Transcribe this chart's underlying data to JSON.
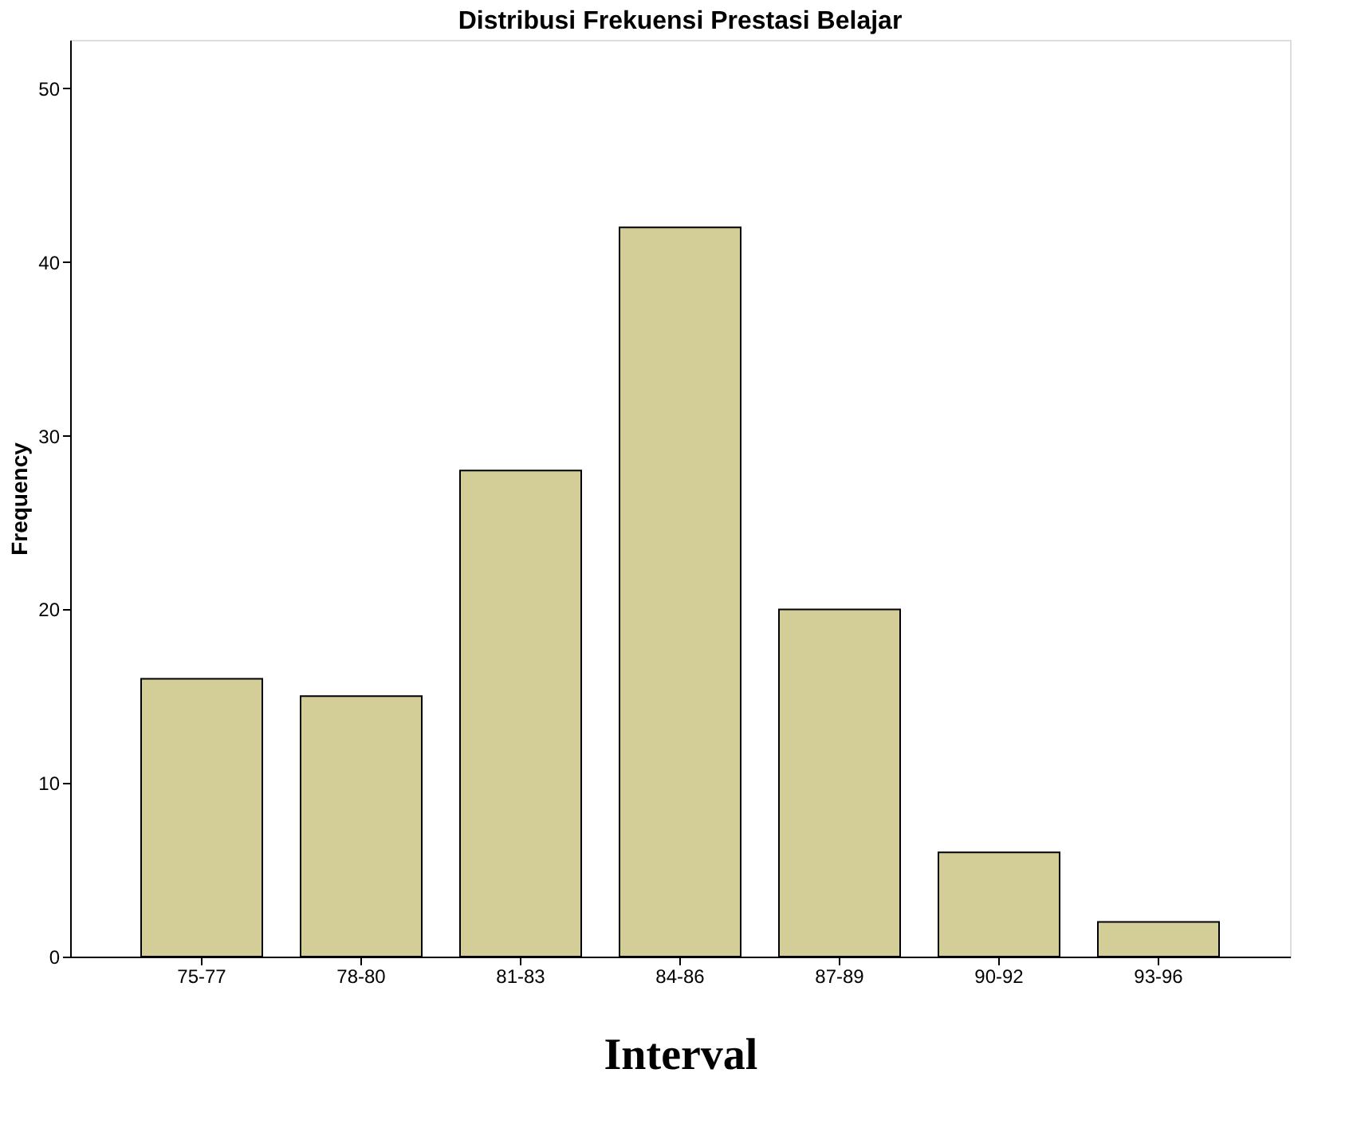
{
  "chart_data": {
    "type": "bar",
    "title": "Distribusi Frekuensi Prestasi Belajar",
    "xlabel": "Interval",
    "ylabel": "Frequency",
    "categories": [
      "75-77",
      "78-80",
      "81-83",
      "84-86",
      "87-89",
      "90-92",
      "93-96"
    ],
    "values": [
      16,
      15,
      28,
      42,
      20,
      6,
      2
    ],
    "color": "#d3ce97",
    "ylim": [
      0,
      52.8
    ],
    "yticks": [
      0,
      10,
      20,
      30,
      40,
      50
    ],
    "grid": false
  }
}
